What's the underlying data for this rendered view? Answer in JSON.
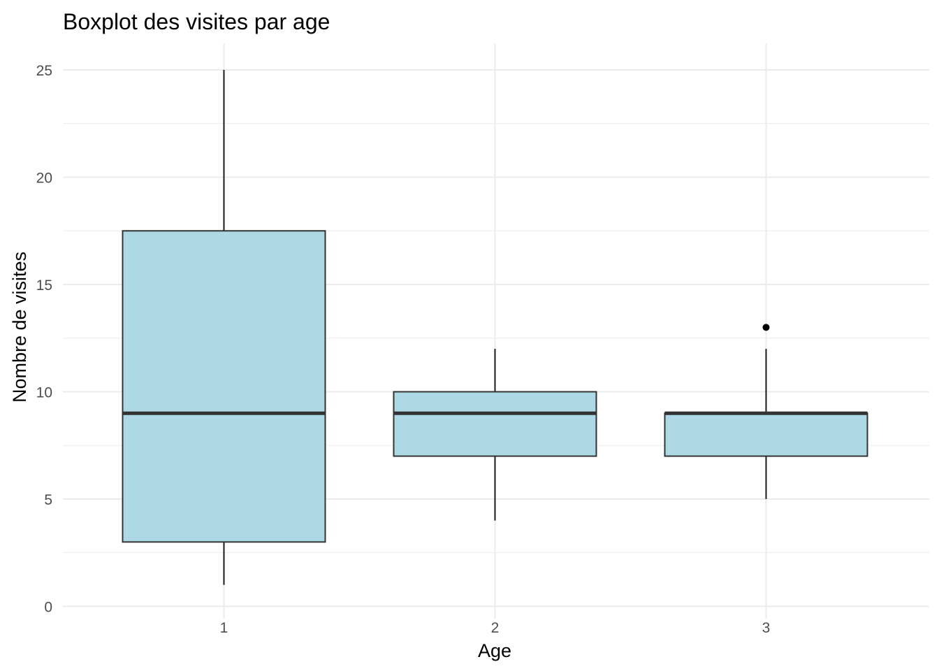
{
  "chart_data": {
    "type": "boxplot",
    "title": "Boxplot des visites par age",
    "xlabel": "Age",
    "ylabel": "Nombre de visites",
    "categories": [
      "1",
      "2",
      "3"
    ],
    "ylim": [
      0,
      25
    ],
    "yticks": [
      0,
      5,
      10,
      15,
      20,
      25
    ],
    "grid": true,
    "legend": "none",
    "box_fill": "#add8e6",
    "box_stroke": "#333333",
    "boxes": [
      {
        "category": "1",
        "whisker_low": 1,
        "q1": 3,
        "median": 9,
        "q3": 17.5,
        "whisker_high": 25,
        "outliers": []
      },
      {
        "category": "2",
        "whisker_low": 4,
        "q1": 7,
        "median": 9,
        "q3": 10,
        "whisker_high": 12,
        "outliers": []
      },
      {
        "category": "3",
        "whisker_low": 5,
        "q1": 7,
        "median": 9,
        "q3": 9,
        "whisker_high": 12,
        "outliers": [
          13
        ]
      }
    ]
  }
}
